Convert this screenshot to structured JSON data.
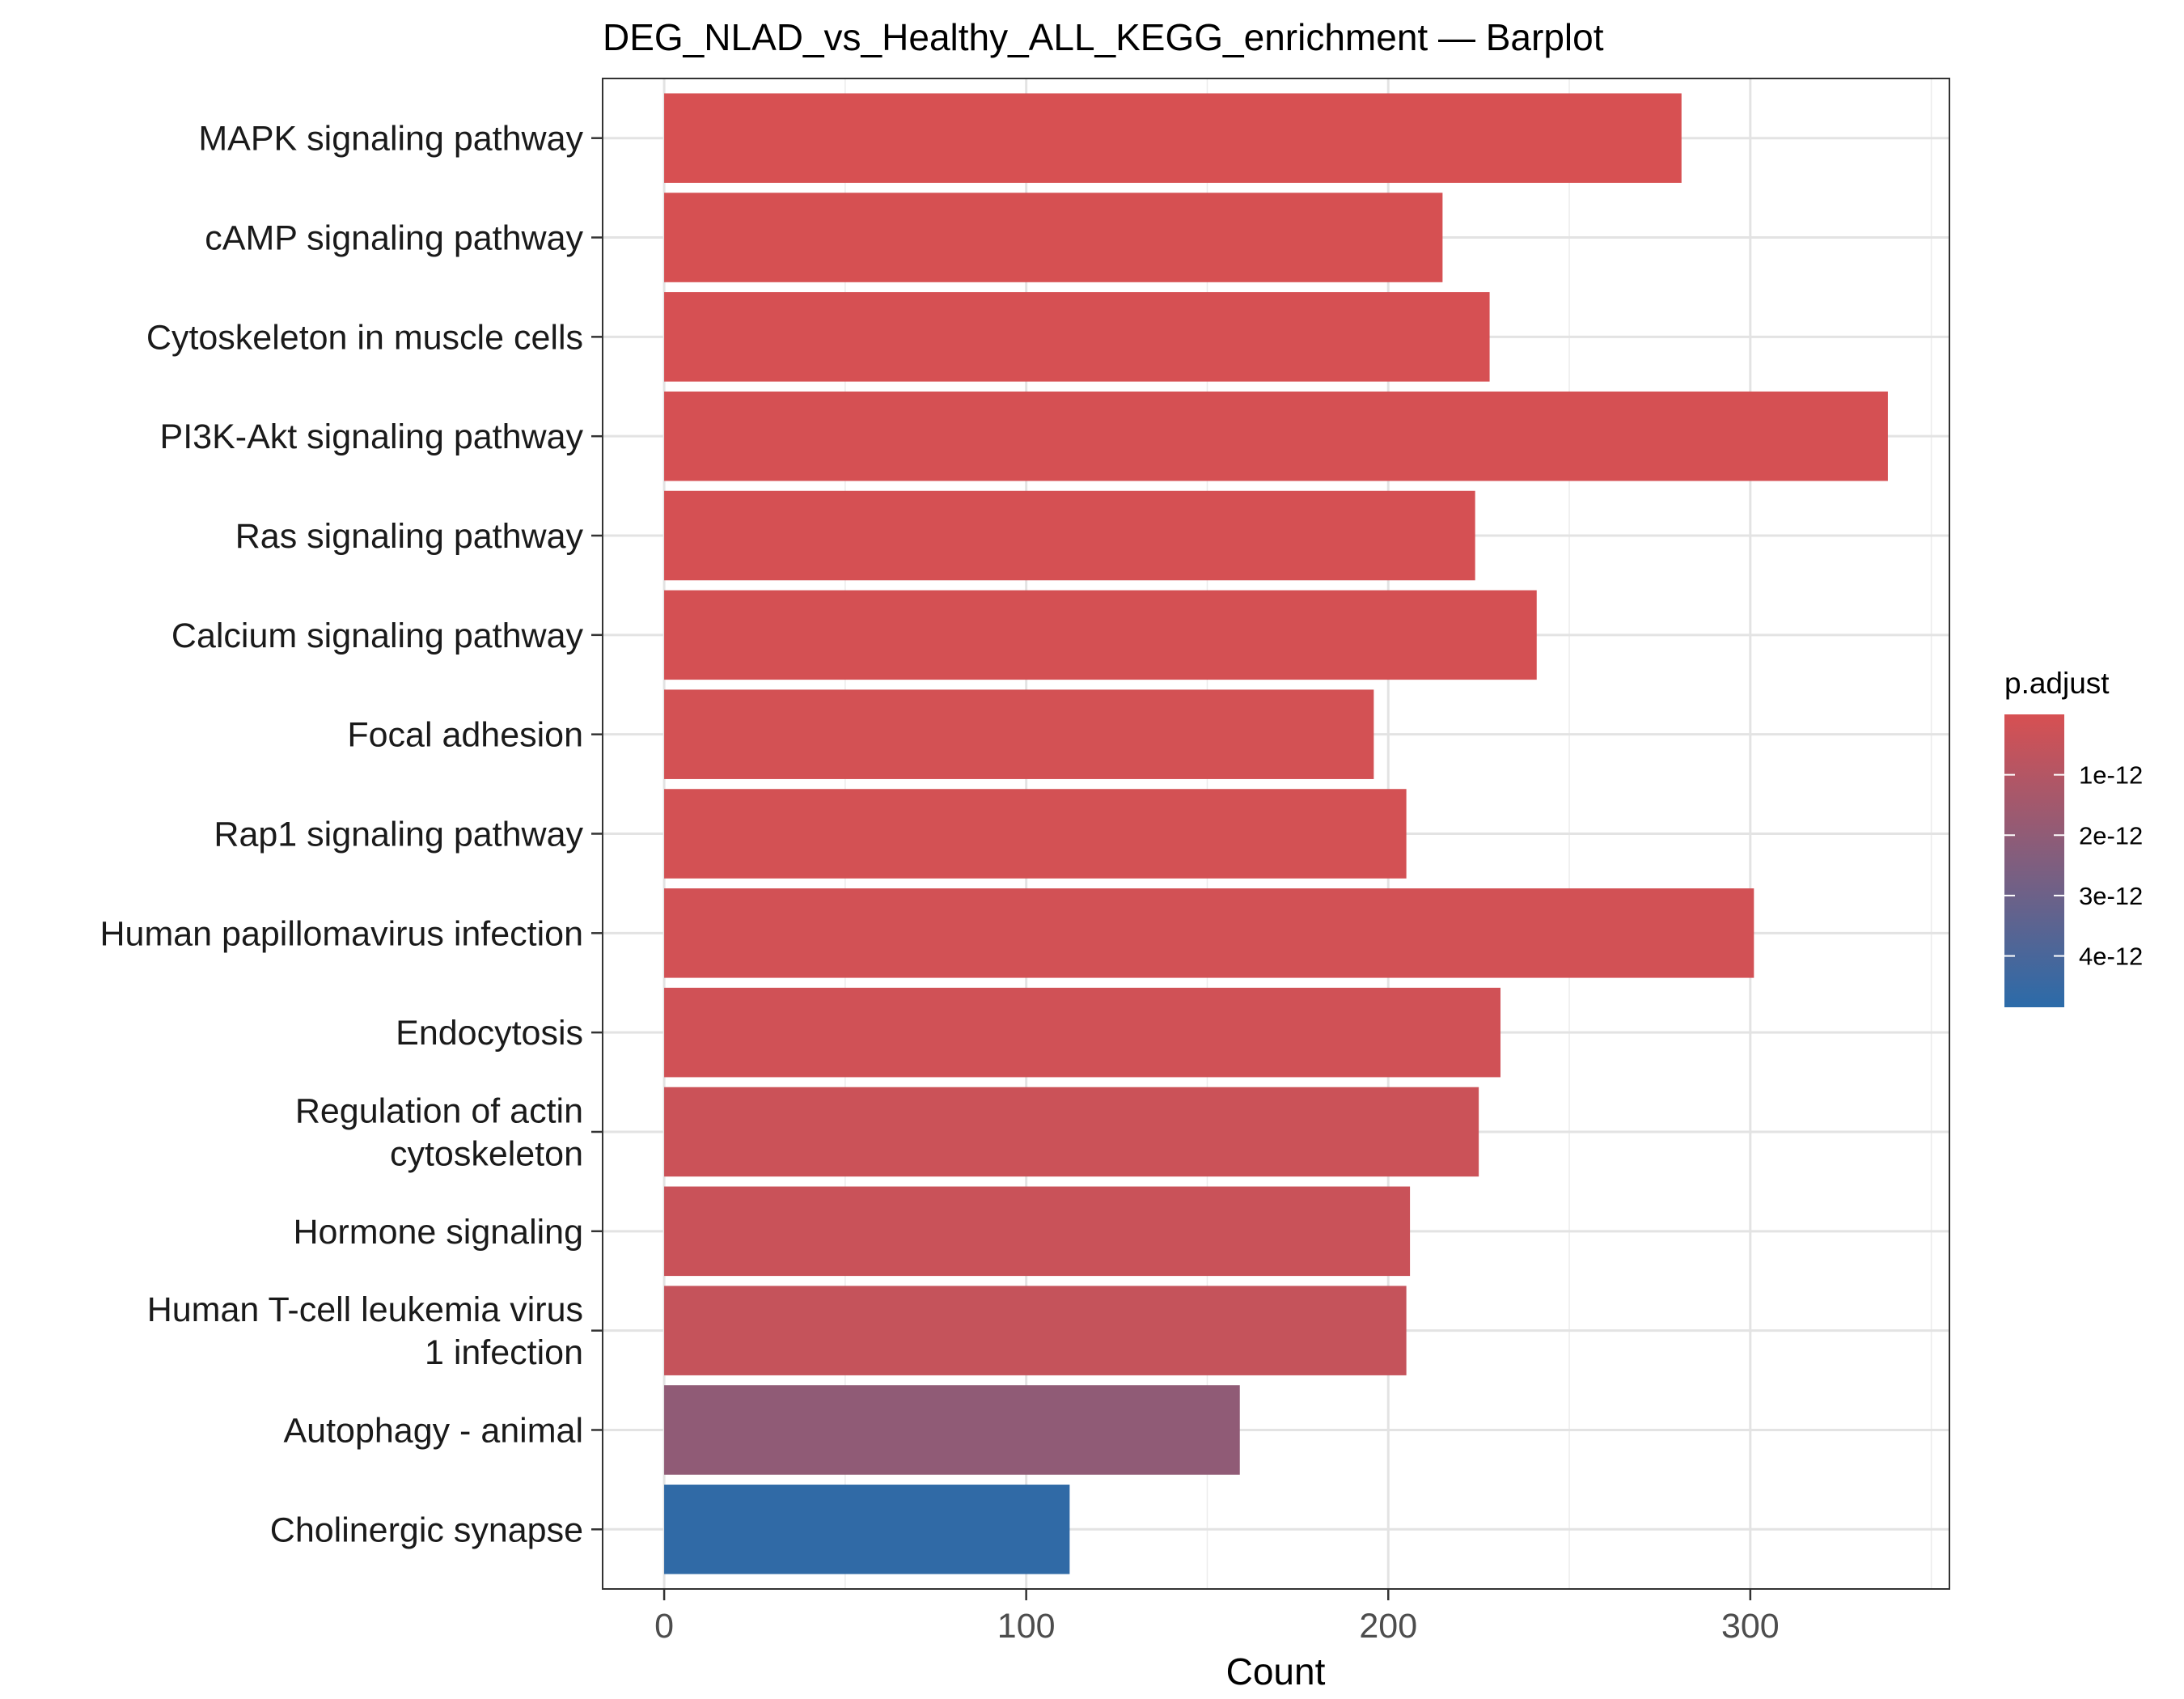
{
  "chart_data": {
    "type": "bar",
    "orientation": "horizontal",
    "title": "DEG_NLAD_vs_Healthy_ALL_KEGG_enrichment — Barplot",
    "xlabel": "Count",
    "ylabel": "",
    "xlim": [
      -17,
      355
    ],
    "xticks": [
      0,
      100,
      200,
      300
    ],
    "grid": true,
    "categories": [
      "MAPK signaling pathway",
      "cAMP signaling pathway",
      "Cytoskeleton in muscle cells",
      "PI3K-Akt signaling pathway",
      "Ras signaling pathway",
      "Calcium signaling pathway",
      "Focal adhesion",
      "Rap1 signaling pathway",
      "Human papillomavirus infection",
      "Endocytosis",
      "Regulation of actin\ncytoskeleton",
      "Hormone signaling",
      "Human T-cell leukemia virus\n1 infection",
      "Autophagy - animal",
      "Cholinergic synapse"
    ],
    "values": [
      281,
      215,
      228,
      338,
      224,
      241,
      196,
      205,
      301,
      231,
      225,
      206,
      205,
      159,
      112
    ],
    "p_adjust": [
      1e-14,
      2e-14,
      3e-14,
      5e-14,
      6e-14,
      8e-14,
      1e-13,
      1.2e-13,
      1.5e-13,
      2e-13,
      3.5e-13,
      4e-13,
      5e-13,
      2e-12,
      4.7e-12
    ],
    "legend": {
      "title": "p.adjust",
      "position": "right",
      "ticks": [
        1e-12,
        2e-12,
        3e-12,
        4e-12
      ],
      "tick_labels": [
        "1e-12",
        "2e-12",
        "3e-12",
        "4e-12"
      ],
      "range": [
        0,
        4.85e-12
      ],
      "color_low": "#d75052",
      "color_high": "#2b6ba9"
    }
  }
}
